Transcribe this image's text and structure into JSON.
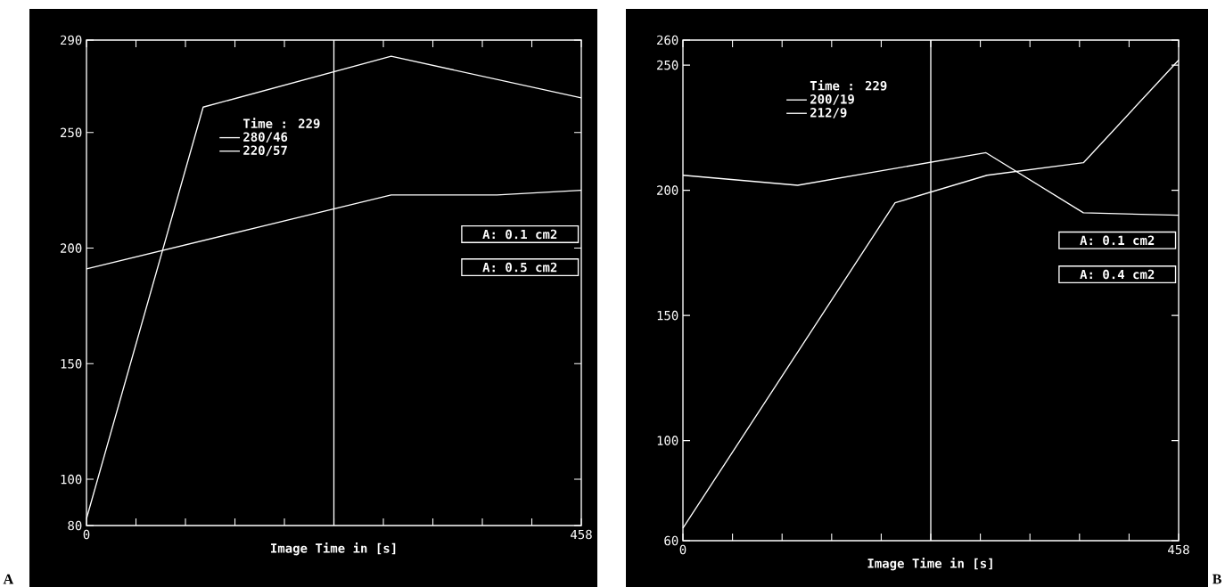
{
  "chart_data": [
    {
      "type": "line",
      "xlabel": "Image Time in [s]",
      "legend_title": "Time    : 229",
      "legend": "left",
      "xlim": [
        0,
        458
      ],
      "ylim": [
        80,
        290
      ],
      "xticks": [
        0,
        {
          "value": 45.8,
          "label": null
        },
        {
          "value": 91.6,
          "label": null
        },
        {
          "value": 137.4,
          "label": null
        },
        {
          "value": 183.2,
          "label": null
        },
        {
          "value": 229,
          "label": null
        },
        {
          "value": 274.8,
          "label": null
        },
        {
          "value": 320.6,
          "label": null
        },
        {
          "value": 366.4,
          "label": null
        },
        {
          "value": 412.2,
          "label": null
        },
        458
      ],
      "yticks": [
        80,
        100,
        150,
        200,
        250,
        290
      ],
      "series": [
        {
          "name": "280/46",
          "color": "#ffffff",
          "x": [
            0,
            108,
            282,
            458
          ],
          "values": [
            83,
            261,
            283,
            265
          ]
        },
        {
          "name": "220/57",
          "color": "#ffffff",
          "x": [
            0,
            282,
            380,
            458
          ],
          "values": [
            191,
            223,
            223,
            225
          ]
        }
      ],
      "ref_lines": [
        {
          "axis": "x",
          "value": 229
        }
      ],
      "annotations": [
        "A:  0.1 cm2",
        "A:  0.5 cm2",
        "A"
      ]
    },
    {
      "type": "line",
      "xlabel": "Image Time in [s]",
      "legend_title": "Time    : 229",
      "legend": "top left",
      "xlim": [
        0,
        458
      ],
      "ylim": [
        60,
        260
      ],
      "xticks": [
        0,
        {
          "value": 45.8,
          "label": null
        },
        {
          "value": 91.6,
          "label": null
        },
        {
          "value": 137.4,
          "label": null
        },
        {
          "value": 183.2,
          "label": null
        },
        {
          "value": 229,
          "label": null
        },
        {
          "value": 274.8,
          "label": null
        },
        {
          "value": 320.6,
          "label": null
        },
        {
          "value": 366.4,
          "label": null
        },
        {
          "value": 412.2,
          "label": null
        },
        458
      ],
      "yticks": [
        60,
        100,
        150,
        200,
        250,
        260
      ],
      "series": [
        {
          "name": "200/19",
          "color": "#ffffff",
          "x": [
            0,
            196,
            281,
            370,
            458
          ],
          "values": [
            65,
            195,
            206,
            211,
            252
          ]
        },
        {
          "name": "212/9",
          "color": "#ffffff",
          "x": [
            0,
            106,
            280,
            370,
            458
          ],
          "values": [
            206,
            202,
            215,
            191,
            190
          ]
        }
      ],
      "ref_lines": [
        {
          "axis": "x",
          "value": 229
        }
      ],
      "annotations": [
        "A:  0.1 cm2",
        "A:  0.4 cm2",
        "B"
      ]
    }
  ]
}
